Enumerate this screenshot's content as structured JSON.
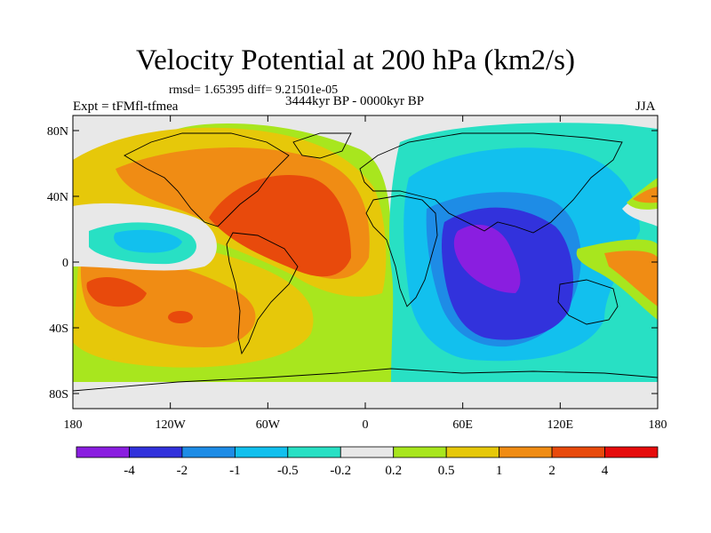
{
  "title": "Velocity Potential at 200 hPa (km2/s)",
  "stats": "rmsd= 1.65395 diff= 9.21501e-05",
  "left_label": "Expt = tFMfl-tfmea",
  "center_label": "3444kyr BP - 0000kyr BP",
  "right_label": "JJA",
  "lat_ticks": [
    {
      "label": "80N",
      "lat": 80
    },
    {
      "label": "40N",
      "lat": 40
    },
    {
      "label": "0",
      "lat": 0
    },
    {
      "label": "40S",
      "lat": -40
    },
    {
      "label": "80S",
      "lat": -80
    }
  ],
  "lon_ticks": [
    {
      "label": "180",
      "lon": -180
    },
    {
      "label": "120W",
      "lon": -120
    },
    {
      "label": "60W",
      "lon": -60
    },
    {
      "label": "0",
      "lon": 0
    },
    {
      "label": "60E",
      "lon": 60
    },
    {
      "label": "120E",
      "lon": 120
    },
    {
      "label": "180",
      "lon": 180
    }
  ],
  "colorbar": {
    "colors": [
      "#8a1ee0",
      "#3232dc",
      "#1e8ce6",
      "#12c0ee",
      "#28e0c4",
      "#e8e8e8",
      "#a8e61e",
      "#e6c80a",
      "#f08c14",
      "#e84a0c",
      "#e60c0c"
    ],
    "labels": [
      "-4",
      "-2",
      "-1",
      "-0.5",
      "-0.2",
      "0.2",
      "0.5",
      "1",
      "2",
      "4"
    ]
  },
  "colors": {
    "ocean_bg": "#e8e8e8",
    "coast": "#000000"
  }
}
